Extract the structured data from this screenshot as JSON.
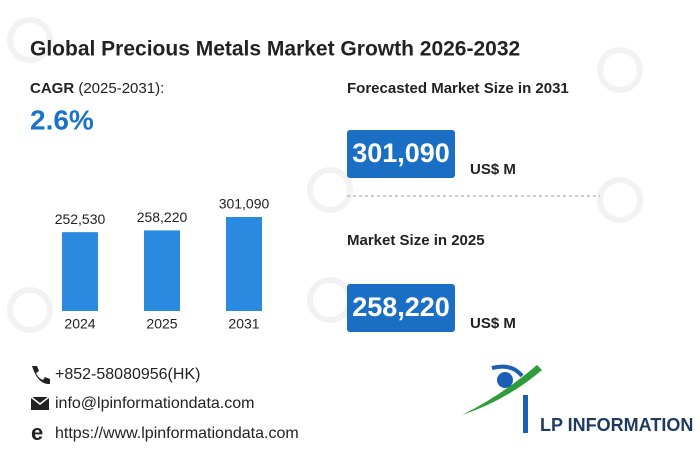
{
  "title": "Global Precious Metals Market Growth 2026-2032",
  "cagr": {
    "label": "CAGR",
    "period": "(2025-2031):",
    "value": "2.6%"
  },
  "forecast": {
    "label": "Forecasted Market Size in 2031",
    "value": "301,090",
    "unit": "US$ M"
  },
  "current": {
    "label": "Market Size in 2025",
    "value": "258,220",
    "unit": "US$ M"
  },
  "contact": {
    "phone": "+852-58080956(HK)",
    "email": "info@lpinformationdata.com",
    "website": "https://www.lpinformationdata.com"
  },
  "logo": "LP INFORMATION",
  "chart_data": {
    "type": "bar",
    "categories": [
      "2024",
      "2025",
      "2031"
    ],
    "values": [
      252530,
      258220,
      301090
    ],
    "value_labels": [
      "252,530",
      "258,220",
      "301,090"
    ],
    "color": "#2a8ae0"
  }
}
